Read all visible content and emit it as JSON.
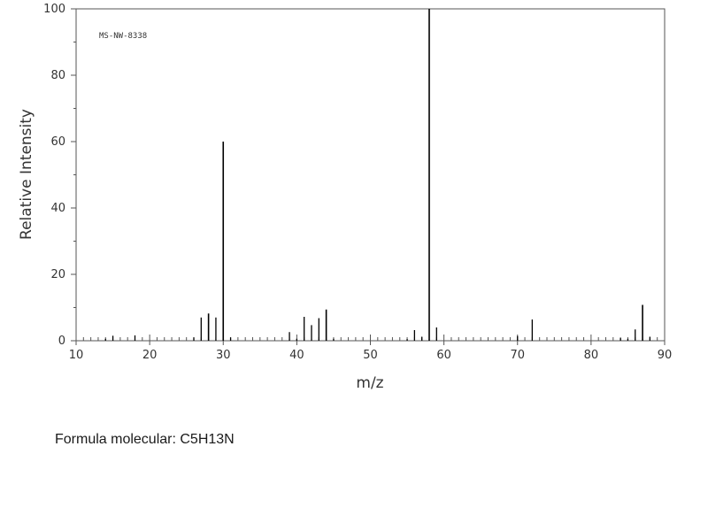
{
  "caption": {
    "text": "Formula molecular: C5H13N"
  },
  "chart_data": {
    "type": "bar",
    "annotation": "MS-NW-8338",
    "xlabel": "m/z",
    "ylabel": "Relative Intensity",
    "xlim": [
      10,
      90
    ],
    "ylim": [
      0,
      100
    ],
    "xticks": [
      10,
      20,
      30,
      40,
      50,
      60,
      70,
      80,
      90
    ],
    "yticks": [
      0,
      20,
      40,
      60,
      80,
      100
    ],
    "grid": false,
    "color": "#000000",
    "peaks": [
      {
        "mz": 14,
        "intensity": 0.6
      },
      {
        "mz": 15,
        "intensity": 1.5
      },
      {
        "mz": 18,
        "intensity": 1.6
      },
      {
        "mz": 26,
        "intensity": 1.0
      },
      {
        "mz": 27,
        "intensity": 7.0
      },
      {
        "mz": 28,
        "intensity": 8.2
      },
      {
        "mz": 29,
        "intensity": 7.0
      },
      {
        "mz": 30,
        "intensity": 60.0
      },
      {
        "mz": 31,
        "intensity": 1.0
      },
      {
        "mz": 39,
        "intensity": 2.6
      },
      {
        "mz": 40,
        "intensity": 0.6
      },
      {
        "mz": 41,
        "intensity": 7.2
      },
      {
        "mz": 42,
        "intensity": 4.7
      },
      {
        "mz": 43,
        "intensity": 6.8
      },
      {
        "mz": 44,
        "intensity": 9.4
      },
      {
        "mz": 45,
        "intensity": 0.6
      },
      {
        "mz": 55,
        "intensity": 0.5
      },
      {
        "mz": 56,
        "intensity": 3.2
      },
      {
        "mz": 57,
        "intensity": 1.2
      },
      {
        "mz": 58,
        "intensity": 100.0
      },
      {
        "mz": 59,
        "intensity": 4.0
      },
      {
        "mz": 70,
        "intensity": 1.4
      },
      {
        "mz": 72,
        "intensity": 6.4
      },
      {
        "mz": 84,
        "intensity": 0.8
      },
      {
        "mz": 85,
        "intensity": 0.6
      },
      {
        "mz": 86,
        "intensity": 3.4
      },
      {
        "mz": 87,
        "intensity": 10.8
      },
      {
        "mz": 88,
        "intensity": 1.2
      }
    ]
  }
}
